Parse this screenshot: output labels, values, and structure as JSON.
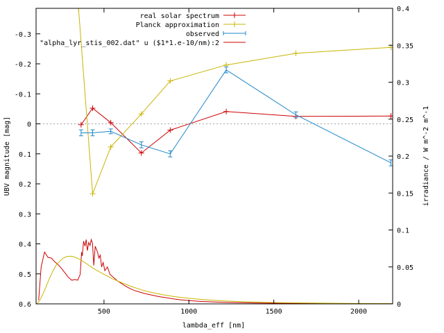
{
  "chart_data": {
    "type": "line",
    "title": "",
    "xlabel": "lambda_eff [nm]",
    "ylabel": "UBV magnitude [mag]",
    "y2label": "irradiance / W m^-2 m^-1",
    "xlim": [
      100,
      2200
    ],
    "ylim": [
      -0.385,
      0.6
    ],
    "y_inverted": true,
    "y2lim": [
      0,
      0.4
    ],
    "x_ticks": [
      500,
      1000,
      1500,
      2000
    ],
    "y_ticks": [
      -0.3,
      -0.2,
      -0.1,
      0,
      0.1,
      0.2,
      0.3,
      0.4,
      0.5,
      0.6
    ],
    "y_tick_labels": [
      "-0.3",
      "-0.2",
      "-0.1",
      "0",
      "0.1",
      "0.2",
      "0.3",
      "0.4",
      "0.5",
      "0.6"
    ],
    "y2_ticks": [
      0,
      0.05,
      0.1,
      0.15,
      0.2,
      0.25,
      0.3,
      0.35,
      0.4
    ],
    "y2_tick_labels": [
      "0",
      "0.05",
      "0.1",
      "0.15",
      "0.2",
      "0.25",
      "0.3",
      "0.35",
      "0.4"
    ],
    "grid": false,
    "zero_line": true,
    "legend_position": "top-right",
    "colors": {
      "red": "#cc0000",
      "yellow": "#c8b400",
      "blue": "#1e86c8",
      "grey": "#a0a0a0"
    },
    "series": [
      {
        "name": "real solar spectrum",
        "axis": "left",
        "color": "#cc0000",
        "marker": "plus",
        "x": [
          365,
          433,
          540,
          720,
          890,
          1220,
          1630,
          2190
        ],
        "y": [
          0.003,
          -0.052,
          -0.004,
          0.097,
          0.021,
          -0.041,
          -0.025,
          -0.026
        ]
      },
      {
        "name": "Planck approximation",
        "axis": "left",
        "color": "#c8b400",
        "marker": "plus",
        "x": [
          350,
          433,
          540,
          720,
          890,
          1220,
          1630,
          2190
        ],
        "y": [
          -0.385,
          0.233,
          0.077,
          -0.033,
          -0.143,
          -0.196,
          -0.235,
          -0.255
        ]
      },
      {
        "name": "observed",
        "axis": "left",
        "color": "#1e86c8",
        "marker": "errorbar",
        "x": [
          365,
          433,
          540,
          720,
          890,
          1220,
          1630,
          2190
        ],
        "y": [
          0.03,
          0.03,
          0.025,
          0.07,
          0.1,
          -0.18,
          -0.03,
          0.13
        ],
        "err": [
          0.01,
          0.01,
          0.008,
          0.01,
          0.01,
          0.01,
          0.01,
          0.01
        ]
      },
      {
        "name": "\"alpha_lyr_stis_002.dat\" u ($1*1.e-10/nm):2",
        "axis": "right",
        "color": "#cc0000",
        "x": [
          115,
          130,
          150,
          170,
          190,
          210,
          230,
          250,
          270,
          290,
          310,
          330,
          345,
          360,
          368,
          372,
          380,
          388,
          395,
          402,
          410,
          418,
          425,
          432,
          440,
          448,
          455,
          462,
          470,
          478,
          486,
          495,
          505,
          520,
          535,
          550,
          565,
          580,
          600,
          620,
          650,
          680,
          710,
          740,
          780,
          820,
          860,
          900,
          950,
          1000,
          1050,
          1100,
          1200,
          1300,
          1400,
          1500,
          1600,
          1700,
          1800,
          1900,
          2000,
          2100,
          2200
        ],
        "y": [
          0.005,
          0.05,
          0.07,
          0.063,
          0.062,
          0.057,
          0.053,
          0.048,
          0.042,
          0.036,
          0.032,
          0.033,
          0.032,
          0.04,
          0.07,
          0.065,
          0.085,
          0.078,
          0.087,
          0.072,
          0.083,
          0.079,
          0.087,
          0.082,
          0.052,
          0.078,
          0.074,
          0.07,
          0.062,
          0.066,
          0.05,
          0.056,
          0.045,
          0.05,
          0.04,
          0.037,
          0.034,
          0.031,
          0.028,
          0.025,
          0.021,
          0.018,
          0.016,
          0.014,
          0.012,
          0.01,
          0.0085,
          0.007,
          0.0055,
          0.0045,
          0.0037,
          0.003,
          0.0022,
          0.0016,
          0.0012,
          0.0009,
          0.0007,
          0.00055,
          0.00045,
          0.00035,
          0.00028,
          0.00022,
          0.00018
        ]
      },
      {
        "name": "",
        "axis": "right",
        "color": "#c8b400",
        "x": [
          105,
          120,
          140,
          160,
          180,
          200,
          220,
          240,
          260,
          280,
          300,
          320,
          340,
          360,
          380,
          400,
          430,
          460,
          500,
          550,
          600,
          650,
          700,
          750,
          800,
          850,
          900,
          950,
          1000,
          1100,
          1200,
          1300,
          1400,
          1500,
          1600,
          1700,
          1800,
          1900,
          2000,
          2100,
          2200
        ],
        "y": [
          0.0005,
          0.004,
          0.013,
          0.024,
          0.035,
          0.045,
          0.053,
          0.058,
          0.062,
          0.064,
          0.0645,
          0.064,
          0.062,
          0.06,
          0.057,
          0.054,
          0.049,
          0.045,
          0.04,
          0.034,
          0.029,
          0.0245,
          0.0205,
          0.017,
          0.0145,
          0.0122,
          0.0103,
          0.0088,
          0.0075,
          0.0055,
          0.0041,
          0.0031,
          0.0024,
          0.0018,
          0.0014,
          0.0011,
          0.0009,
          0.0007,
          0.0006,
          0.0005,
          0.0004
        ]
      }
    ]
  }
}
